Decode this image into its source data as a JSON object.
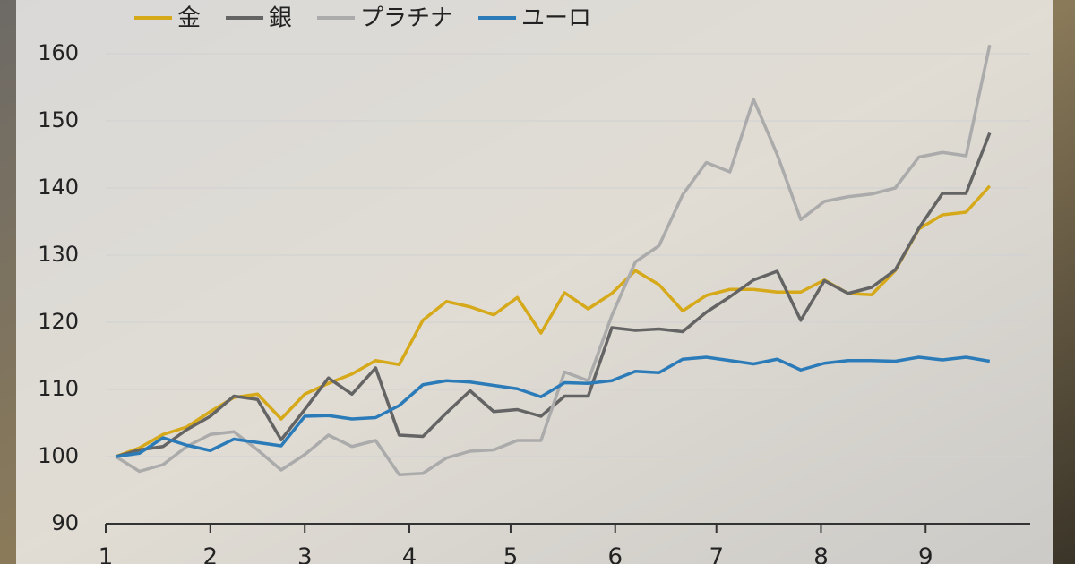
{
  "chart_data": {
    "type": "line",
    "x": [
      3,
      10,
      17,
      24,
      31,
      38,
      45,
      52,
      59,
      66,
      73,
      80,
      87,
      94,
      101,
      108,
      115,
      122,
      129,
      136,
      143,
      150,
      157,
      164,
      171,
      178,
      185,
      192,
      199,
      206,
      213,
      220,
      227,
      234,
      241,
      248,
      255,
      262
    ],
    "series": [
      {
        "name": "金",
        "color": "#d6a91a",
        "values": [
          100,
          101.3,
          103.3,
          104.4,
          106.7,
          108.8,
          109.3,
          105.6,
          109.3,
          110.9,
          112.3,
          114.3,
          113.7,
          120.3,
          123.1,
          122.3,
          121.1,
          123.7,
          118.4,
          124.4,
          122,
          124.3,
          127.7,
          125.6,
          121.7,
          124,
          124.9,
          124.9,
          124.5,
          124.5,
          126.3,
          124.3,
          124.1,
          127.7,
          133.9,
          136,
          136.4,
          140.3
        ]
      },
      {
        "name": "銀",
        "color": "#646464",
        "values": [
          100,
          101,
          101.5,
          104,
          106,
          109,
          108.5,
          102.5,
          107,
          111.7,
          109.3,
          113.2,
          103.2,
          103,
          106.5,
          109.8,
          106.7,
          107,
          106,
          109,
          109,
          119.2,
          118.8,
          119,
          118.6,
          121.5,
          123.8,
          126.3,
          127.6,
          120.3,
          126.2,
          124.3,
          125.2,
          127.8,
          134,
          139.2,
          139.2,
          148.2
        ]
      },
      {
        "name": "プラチナ",
        "color": "#ababab",
        "values": [
          100,
          97.8,
          98.8,
          101.5,
          103.3,
          103.7,
          101,
          98,
          100.3,
          103.2,
          101.5,
          102.4,
          97.3,
          97.5,
          99.8,
          100.8,
          101,
          102.4,
          102.4,
          112.6,
          111.3,
          121,
          129,
          131.4,
          139,
          143.8,
          142.4,
          153.2,
          145,
          135.3,
          138,
          138.7,
          139.1,
          140,
          144.6,
          145.3,
          144.8,
          161.3
        ]
      },
      {
        "name": "ユーロ",
        "color": "#2b7bb9",
        "values": [
          100,
          100.5,
          102.8,
          101.7,
          100.9,
          102.6,
          102.1,
          101.6,
          106,
          106.1,
          105.6,
          105.8,
          107.6,
          110.7,
          111.3,
          111.1,
          110.6,
          110.1,
          108.9,
          111,
          110.9,
          111.3,
          112.7,
          112.5,
          114.5,
          114.8,
          114.3,
          113.8,
          114.5,
          112.9,
          113.9,
          114.3,
          114.3,
          114.2,
          114.8,
          114.4,
          114.8,
          114.2
        ]
      }
    ],
    "xlim": [
      0,
      274
    ],
    "xticks": [
      {
        "value": 0,
        "label": "1"
      },
      {
        "value": 31,
        "label": "2"
      },
      {
        "value": 59,
        "label": "3"
      },
      {
        "value": 90,
        "label": "4"
      },
      {
        "value": 120,
        "label": "5"
      },
      {
        "value": 151,
        "label": "6"
      },
      {
        "value": 181,
        "label": "7"
      },
      {
        "value": 212,
        "label": "8"
      },
      {
        "value": 243,
        "label": "9"
      }
    ],
    "ylim": [
      90,
      160
    ],
    "yticks": [
      90,
      100,
      110,
      120,
      130,
      140,
      150,
      160
    ],
    "grid": true
  }
}
